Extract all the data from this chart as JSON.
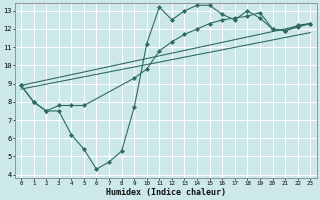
{
  "xlabel": "Humidex (Indice chaleur)",
  "bg_color": "#cce8eb",
  "grid_color": "#ffffff",
  "line_color": "#2e6b5e",
  "xlim": [
    -0.5,
    23.5
  ],
  "ylim": [
    3.8,
    13.4
  ],
  "yticks": [
    4,
    5,
    6,
    7,
    8,
    9,
    10,
    11,
    12,
    13
  ],
  "xticks": [
    0,
    1,
    2,
    3,
    4,
    5,
    6,
    7,
    8,
    9,
    10,
    11,
    12,
    13,
    14,
    15,
    16,
    17,
    18,
    19,
    20,
    21,
    22,
    23
  ],
  "line1_x": [
    0,
    1,
    2,
    3,
    4,
    5,
    6,
    7,
    8,
    9,
    10,
    11,
    12,
    13,
    14,
    15,
    16,
    17,
    18,
    19,
    20,
    21,
    22,
    23
  ],
  "line1_y": [
    8.9,
    8.0,
    7.5,
    7.5,
    6.2,
    5.4,
    4.3,
    4.7,
    5.3,
    7.7,
    11.2,
    13.2,
    12.5,
    13.0,
    13.3,
    13.3,
    12.8,
    12.5,
    13.0,
    12.6,
    12.0,
    11.9,
    12.2,
    12.3
  ],
  "line2_x": [
    0,
    1,
    2,
    3,
    4,
    5,
    9,
    10,
    11,
    12,
    13,
    14,
    15,
    16,
    17,
    18,
    19,
    20,
    21,
    22,
    23
  ],
  "line2_y": [
    8.9,
    8.0,
    7.5,
    7.8,
    7.8,
    7.8,
    9.3,
    9.8,
    10.8,
    11.3,
    11.7,
    12.0,
    12.3,
    12.5,
    12.6,
    12.7,
    12.9,
    12.0,
    11.9,
    12.1,
    12.3
  ],
  "line3_x": [
    0,
    23
  ],
  "line3_y": [
    8.9,
    12.3
  ],
  "line4_x": [
    0,
    23
  ],
  "line4_y": [
    8.7,
    11.8
  ]
}
